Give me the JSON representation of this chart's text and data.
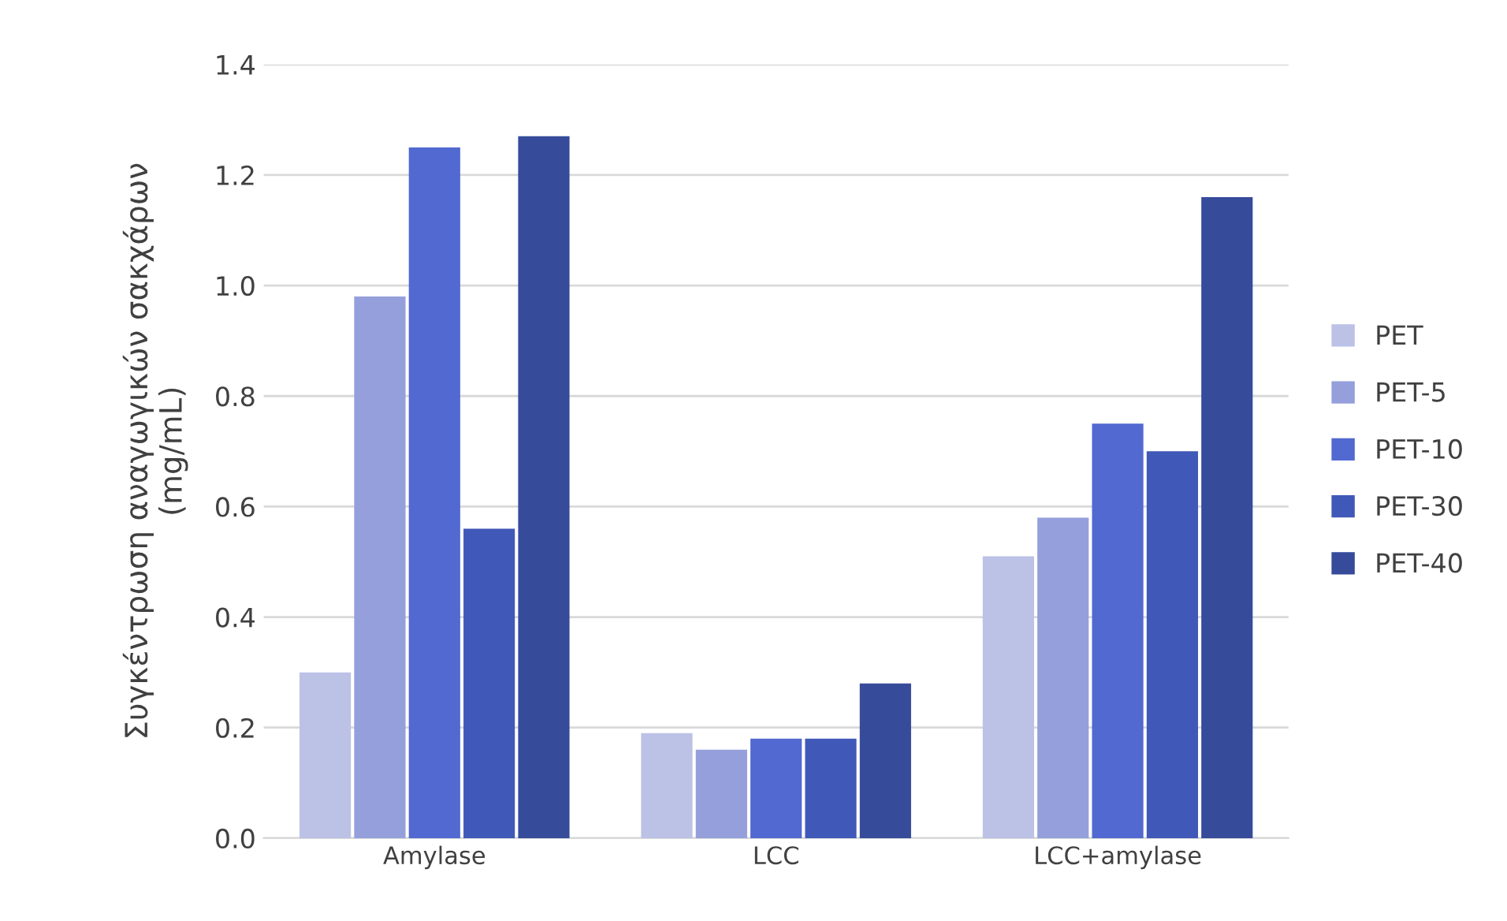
{
  "chart_data": {
    "type": "bar",
    "ylabel": "Συγκέντρωση αναγωγικών σακχάρων\n(mg/mL)",
    "categories": [
      "Amylase",
      "LCC",
      "LCC+amylase"
    ],
    "series": [
      {
        "name": "PET",
        "color": "#bcc1e6",
        "values": [
          0.3,
          0.19,
          0.51
        ]
      },
      {
        "name": "PET-5",
        "color": "#959fdb",
        "values": [
          0.98,
          0.16,
          0.58
        ]
      },
      {
        "name": "PET-10",
        "color": "#5169d0",
        "values": [
          1.25,
          0.18,
          0.75
        ]
      },
      {
        "name": "PET-30",
        "color": "#4059b8",
        "values": [
          0.56,
          0.18,
          0.7
        ]
      },
      {
        "name": "PET-40",
        "color": "#364b9a",
        "values": [
          1.27,
          0.28,
          1.16
        ]
      }
    ],
    "ylim": [
      0,
      1.4
    ],
    "yticks": [
      {
        "value": 0,
        "label": "0.0"
      },
      {
        "value": 0.2,
        "label": "0.2"
      },
      {
        "value": 0.4,
        "label": "0.4"
      },
      {
        "value": 0.6,
        "label": "0.6"
      },
      {
        "value": 0.8,
        "label": "0.8"
      },
      {
        "value": 1.0,
        "label": "1.0"
      },
      {
        "value": 1.2,
        "label": "1.2"
      },
      {
        "value": 1.4,
        "label": "1.4"
      }
    ],
    "grid": "y",
    "legend": "right"
  }
}
